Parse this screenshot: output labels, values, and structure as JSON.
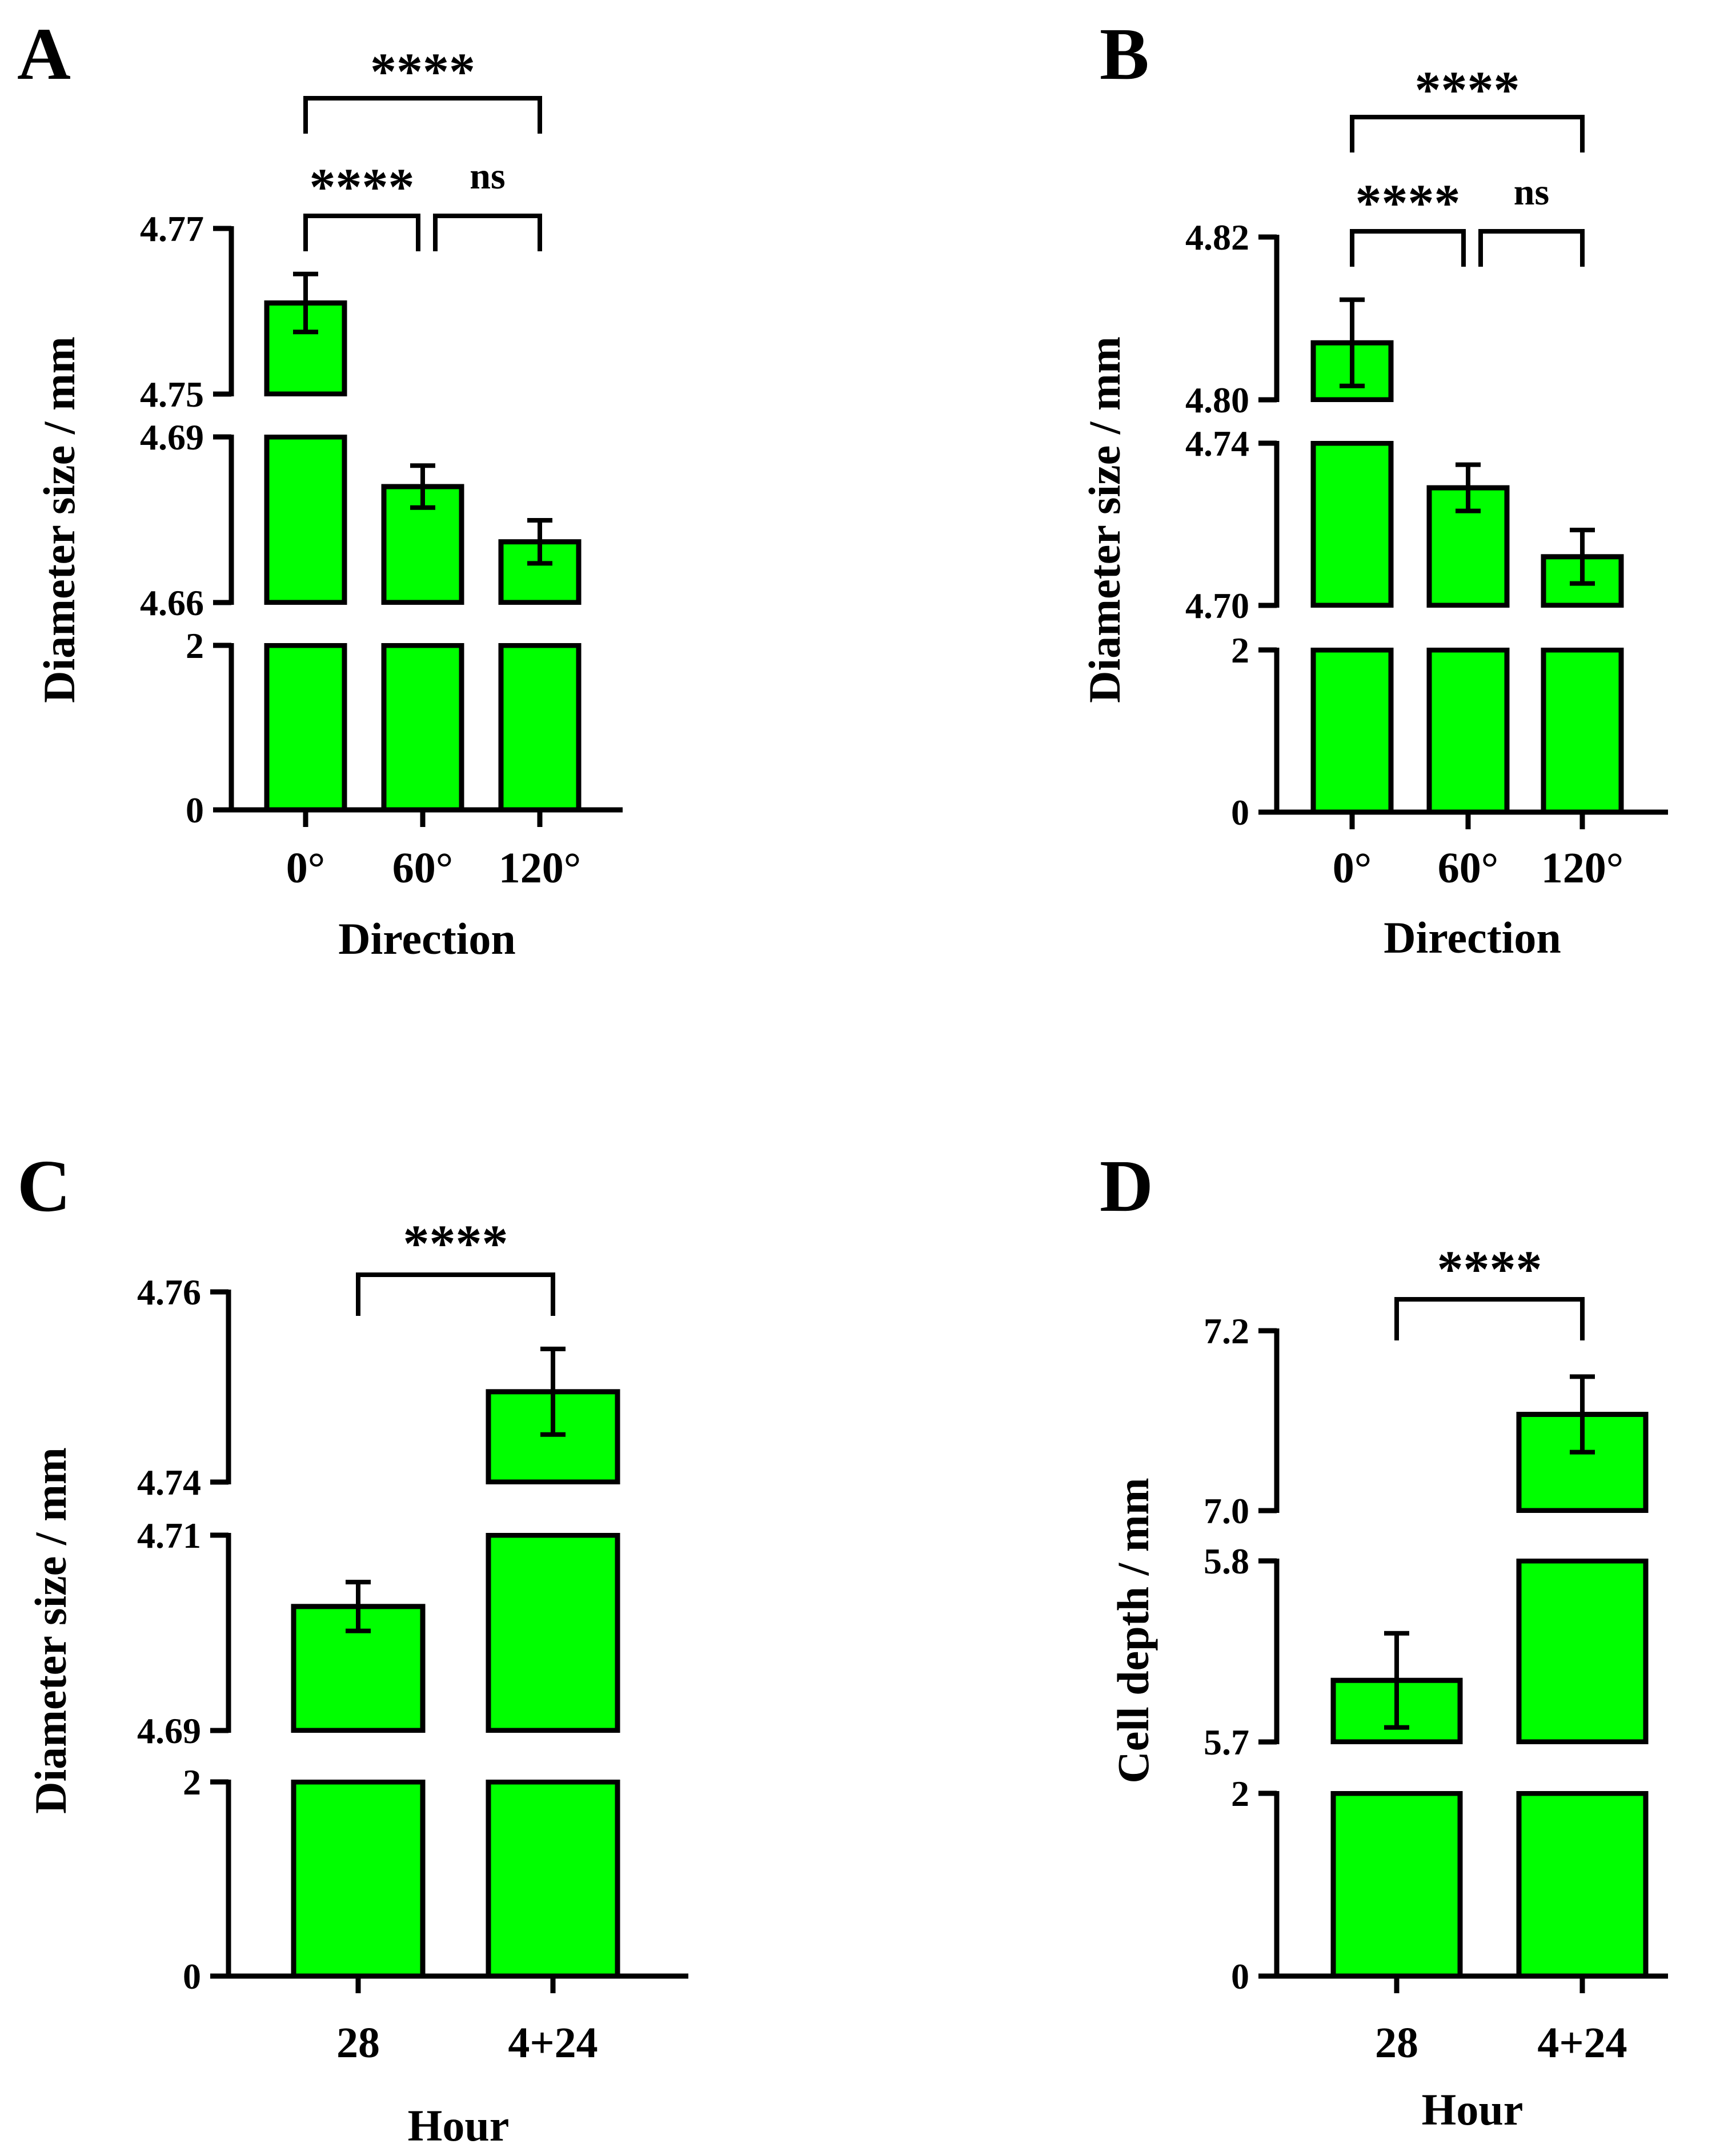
{
  "colors": {
    "bar_fill": "#00ff00",
    "stroke": "#000000",
    "background": "#ffffff"
  },
  "chart_data": [
    {
      "panel": "A",
      "type": "bar",
      "axis_break": true,
      "categories": [
        "0°",
        "60°",
        "120°"
      ],
      "xlabel": "Direction",
      "ylabel": "Diameter size / mm",
      "segments": [
        {
          "range": [
            0,
            2
          ],
          "ticks": [
            "0",
            "2"
          ]
        },
        {
          "range": [
            4.66,
            4.69
          ],
          "ticks": [
            "4.66",
            "4.69"
          ]
        },
        {
          "range": [
            4.75,
            4.77
          ],
          "ticks": [
            "4.75",
            "4.77"
          ]
        }
      ],
      "values": [
        4.761,
        4.681,
        4.671
      ],
      "errors": [
        0.0035,
        0.0038,
        0.0039
      ],
      "significance": [
        {
          "from": 0,
          "to": 2,
          "label": "****"
        },
        {
          "from": 0,
          "to": 1,
          "label": "****"
        },
        {
          "from": 1,
          "to": 2,
          "label": "ns"
        }
      ]
    },
    {
      "panel": "B",
      "type": "bar",
      "axis_break": true,
      "categories": [
        "0°",
        "60°",
        "120°"
      ],
      "xlabel": "Direction",
      "ylabel": "Diameter size / mm",
      "segments": [
        {
          "range": [
            0,
            2
          ],
          "ticks": [
            "0",
            "2"
          ]
        },
        {
          "range": [
            4.7,
            4.74
          ],
          "ticks": [
            "4.70",
            "4.74"
          ]
        },
        {
          "range": [
            4.8,
            4.82
          ],
          "ticks": [
            "4.80",
            "4.82"
          ]
        }
      ],
      "values": [
        4.807,
        4.729,
        4.712
      ],
      "errors": [
        0.0053,
        0.0057,
        0.0066
      ],
      "significance": [
        {
          "from": 0,
          "to": 2,
          "label": "****"
        },
        {
          "from": 0,
          "to": 1,
          "label": "****"
        },
        {
          "from": 1,
          "to": 2,
          "label": "ns"
        }
      ]
    },
    {
      "panel": "C",
      "type": "bar",
      "axis_break": true,
      "categories": [
        "28",
        "4+24"
      ],
      "xlabel": "Hour",
      "ylabel": "Diameter size / mm",
      "segments": [
        {
          "range": [
            0,
            2
          ],
          "ticks": [
            "0",
            "2"
          ]
        },
        {
          "range": [
            4.69,
            4.71
          ],
          "ticks": [
            "4.69",
            "4.71"
          ]
        },
        {
          "range": [
            4.74,
            4.76
          ],
          "ticks": [
            "4.74",
            "4.76"
          ]
        }
      ],
      "values": [
        4.7027,
        4.7495
      ],
      "errors": [
        0.0025,
        0.0045
      ],
      "significance": [
        {
          "from": 0,
          "to": 1,
          "label": "****"
        }
      ]
    },
    {
      "panel": "D",
      "type": "bar",
      "axis_break": true,
      "categories": [
        "28",
        "4+24"
      ],
      "xlabel": "Hour",
      "ylabel": "Cell depth / mm",
      "segments": [
        {
          "range": [
            0,
            2
          ],
          "ticks": [
            "0",
            "2"
          ]
        },
        {
          "range": [
            5.7,
            5.8
          ],
          "ticks": [
            "5.7",
            "5.8"
          ]
        },
        {
          "range": [
            7.0,
            7.2
          ],
          "ticks": [
            "7.0",
            "7.2"
          ]
        }
      ],
      "values": [
        5.734,
        7.107
      ],
      "errors": [
        0.026,
        0.042
      ],
      "significance": [
        {
          "from": 0,
          "to": 1,
          "label": "****"
        }
      ]
    }
  ]
}
